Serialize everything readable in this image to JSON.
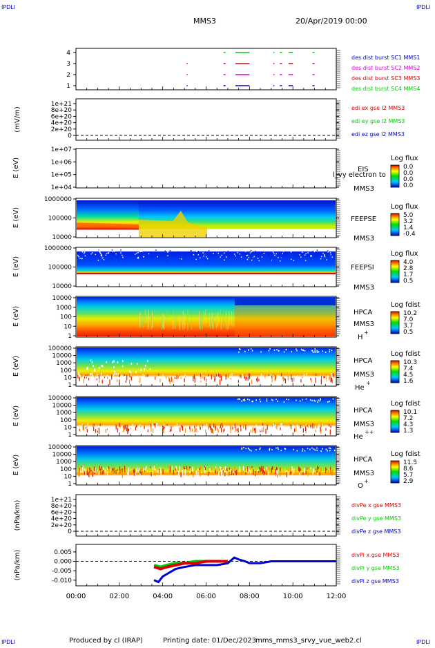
{
  "corner_tag": "IPDLI",
  "header": {
    "spacecraft": "MMS3",
    "datetime": "20/Apr/2019 00:00"
  },
  "footer": {
    "produced_by": "Produced by cl (IRAP)",
    "printing_date": "Printing date: 01/Dec/2023",
    "script_name": "mms_mms3_srvy_vue_web2.cl"
  },
  "time_axis": {
    "range_hours": [
      0,
      12
    ],
    "tick_labels": [
      "00:00",
      "02:00",
      "04:00",
      "06:00",
      "08:00",
      "10:00",
      "12:00"
    ]
  },
  "colors": {
    "red": "#dd0000",
    "green": "#00cc00",
    "blue": "#0000cc",
    "magenta": "#dd00dd"
  },
  "chart_data": [
    {
      "id": "burst",
      "type": "scatter",
      "yticks": [
        "1",
        "2",
        "3",
        "4"
      ],
      "series": [
        {
          "name": "des dist burst SC1 MMS1",
          "color": "#0000cc",
          "level": 1,
          "segments": [
            [
              5.1,
              5.15
            ],
            [
              6.8,
              6.9
            ],
            [
              7.35,
              8.0
            ],
            [
              9.1,
              9.15
            ],
            [
              9.4,
              9.5
            ],
            [
              9.8,
              10.0
            ],
            [
              10.9,
              11.0
            ]
          ]
        },
        {
          "name": "des dist burst SC2 MMS2",
          "color": "#dd00dd",
          "level": 2,
          "segments": [
            [
              5.1,
              5.15
            ],
            [
              6.8,
              6.9
            ],
            [
              7.35,
              8.0
            ],
            [
              9.1,
              9.15
            ],
            [
              9.4,
              9.5
            ],
            [
              9.8,
              10.0
            ],
            [
              10.9,
              11.0
            ]
          ]
        },
        {
          "name": "des dist burst SC3 MMS3",
          "color": "#dd0000",
          "level": 3,
          "segments": [
            [
              5.1,
              5.15
            ],
            [
              6.8,
              6.9
            ],
            [
              7.35,
              8.0
            ],
            [
              9.1,
              9.15
            ],
            [
              9.4,
              9.5
            ],
            [
              9.8,
              10.0
            ],
            [
              10.9,
              11.0
            ]
          ]
        },
        {
          "name": "des dist burst SC4 MMS4",
          "color": "#00cc00",
          "level": 4,
          "segments": [
            [
              6.8,
              6.9
            ],
            [
              7.35,
              8.0
            ],
            [
              9.1,
              9.15
            ],
            [
              9.4,
              9.5
            ],
            [
              9.8,
              10.0
            ],
            [
              10.9,
              11.0
            ]
          ]
        }
      ]
    },
    {
      "id": "edi",
      "type": "line",
      "ylabel": "(mV/m)",
      "yticks": [
        "0",
        "2e+20",
        "4e+20",
        "6e+20",
        "8e+20",
        "1e+21"
      ],
      "series": [
        {
          "name": "edi ex gse l2 MMS3",
          "color": "#dd0000"
        },
        {
          "name": "edi ey gse l2 MMS3",
          "color": "#00cc00"
        },
        {
          "name": "edi ez gse l2 MMS3",
          "color": "#0000cc"
        }
      ]
    },
    {
      "id": "eis",
      "type": "heatmap",
      "ylabel": "E (eV)",
      "yticks": [
        "1e+04",
        "1e+05",
        "1e+06",
        "1e+07"
      ],
      "instrument": "EIS",
      "spacecraft": "MMS3",
      "overlay_text": "l_vy electron to",
      "colorbar": {
        "title": "Log flux",
        "labels": [
          "0.0",
          "0.0",
          "0.0",
          "0.0"
        ]
      }
    },
    {
      "id": "feepse",
      "type": "heatmap",
      "ylabel": "E (eV)",
      "yticks": [
        "10000",
        "100000",
        "1000000"
      ],
      "instrument": "FEEPSE",
      "spacecraft": "MMS3",
      "colorbar": {
        "title": "Log flux",
        "labels": [
          "5.0",
          "3.2",
          "1.4",
          "-0.4"
        ]
      }
    },
    {
      "id": "feepsi",
      "type": "heatmap",
      "ylabel": "E (eV)",
      "yticks": [
        "10000",
        "100000",
        "1000000"
      ],
      "instrument": "FEEPSI",
      "spacecraft": "MMS3",
      "colorbar": {
        "title": "Log flux",
        "labels": [
          "4.0",
          "2.8",
          "1.7",
          "0.5"
        ]
      }
    },
    {
      "id": "hpca_h",
      "type": "heatmap",
      "ylabel": "E (eV)",
      "yticks": [
        "1",
        "10",
        "100",
        "1000",
        "10000"
      ],
      "instrument": "HPCA",
      "spacecraft": "MMS3",
      "species": "H",
      "species_charge": "+",
      "colorbar": {
        "title": "Log fdist",
        "labels": [
          "10.2",
          "7.0",
          "3.7",
          "0.5"
        ]
      }
    },
    {
      "id": "hpca_he",
      "type": "heatmap",
      "ylabel": "E (eV)",
      "yticks": [
        "1",
        "10",
        "100",
        "1000",
        "10000",
        "100000"
      ],
      "instrument": "HPCA",
      "spacecraft": "MMS3",
      "species": "He",
      "species_charge": "+",
      "colorbar": {
        "title": "Log fdist",
        "labels": [
          "10.3",
          "7.4",
          "4.5",
          "1.6"
        ]
      }
    },
    {
      "id": "hpca_he2",
      "type": "heatmap",
      "ylabel": "E (eV)",
      "yticks": [
        "1",
        "10",
        "100",
        "1000",
        "10000",
        "100000"
      ],
      "instrument": "HPCA",
      "spacecraft": "MMS3",
      "species": "He",
      "species_charge": "++",
      "colorbar": {
        "title": "Log fdist",
        "labels": [
          "10.1",
          "7.2",
          "4.3",
          "1.3"
        ]
      }
    },
    {
      "id": "hpca_o",
      "type": "heatmap",
      "ylabel": "E (eV)",
      "yticks": [
        "1",
        "10",
        "100",
        "1000",
        "10000",
        "100000"
      ],
      "instrument": "HPCA",
      "spacecraft": "MMS3",
      "species": "O",
      "species_charge": "+",
      "colorbar": {
        "title": "Log fdist",
        "labels": [
          "11.5",
          "8.6",
          "5.7",
          "2.9"
        ]
      }
    },
    {
      "id": "divpe",
      "type": "line",
      "ylabel": "(nPa/km)",
      "yticks": [
        "0",
        "2e+20",
        "4e+20",
        "6e+20",
        "8e+20",
        "1e+21"
      ],
      "series": [
        {
          "name": "divPe x gse MMS3",
          "color": "#dd0000"
        },
        {
          "name": "divPe y gse MMS3",
          "color": "#00cc00"
        },
        {
          "name": "divPe z gse MMS3",
          "color": "#0000cc"
        }
      ]
    },
    {
      "id": "divpi",
      "type": "line",
      "ylabel": "(nPa/km)",
      "yticks": [
        "-0.010",
        "-0.005",
        "0.000",
        "0.005"
      ],
      "ylim": [
        -0.013,
        0.009
      ],
      "series": [
        {
          "name": "divPi x gse MMS3",
          "color": "#dd0000",
          "x": [
            3.6,
            3.9,
            4.2,
            4.6,
            5.0,
            5.5,
            6.0,
            6.5,
            7.0
          ],
          "y": [
            -0.003,
            -0.004,
            -0.003,
            -0.002,
            -0.001,
            -0.001,
            0.0,
            0.0,
            0.0
          ]
        },
        {
          "name": "divPi y gse MMS3",
          "color": "#00cc00",
          "x": [
            3.6,
            3.9,
            4.2,
            4.6,
            5.0,
            5.5,
            6.0,
            6.5,
            7.0
          ],
          "y": [
            -0.002,
            -0.003,
            -0.002,
            -0.001,
            -0.001,
            0.0,
            0.0,
            0.0,
            0.0
          ]
        },
        {
          "name": "divPi z gse MMS3",
          "color": "#0000cc",
          "x": [
            3.6,
            3.8,
            4.0,
            4.3,
            4.6,
            5.0,
            5.5,
            6.0,
            6.5,
            7.0,
            7.3,
            7.5,
            7.8,
            8.0,
            8.5,
            9.0,
            9.5,
            10.0,
            10.5,
            11.0,
            11.5,
            12.0
          ],
          "y": [
            -0.01,
            -0.011,
            -0.008,
            -0.006,
            -0.004,
            -0.003,
            -0.002,
            -0.002,
            -0.002,
            -0.001,
            0.002,
            0.001,
            0.0,
            -0.001,
            -0.001,
            0.0,
            0.0,
            0.0,
            0.0,
            0.0,
            0.0,
            0.0
          ]
        }
      ]
    }
  ]
}
